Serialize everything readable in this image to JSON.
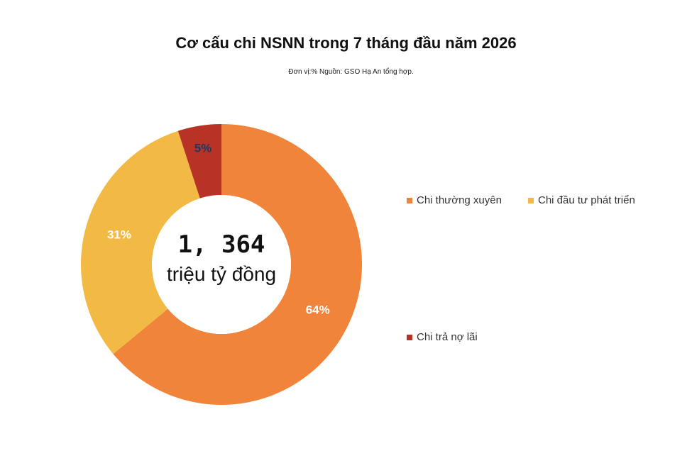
{
  "chart_data": {
    "type": "pie",
    "title": "Cơ cấu chi NSNN trong 7 tháng đầu năm 2026",
    "subtitle": "Đơn vị:% Nguồn: GSO Hạ An tổng hợp.",
    "center_value": "1, 364",
    "center_unit": "triệu tỷ đồng",
    "slices": [
      {
        "name": "Chi thường xuyên",
        "value": 64,
        "label": "64%",
        "color": "#F0843A",
        "label_color": "#ffffff"
      },
      {
        "name": "Chi đầu tư phát triển",
        "value": 31,
        "label": "31%",
        "color": "#F2BA45",
        "label_color": "#ffffff"
      },
      {
        "name": "Chi trả nợ lãi",
        "value": 5,
        "label": "5%",
        "color": "#B83326",
        "label_color": "#1F3864"
      }
    ],
    "legend_position": "right"
  }
}
